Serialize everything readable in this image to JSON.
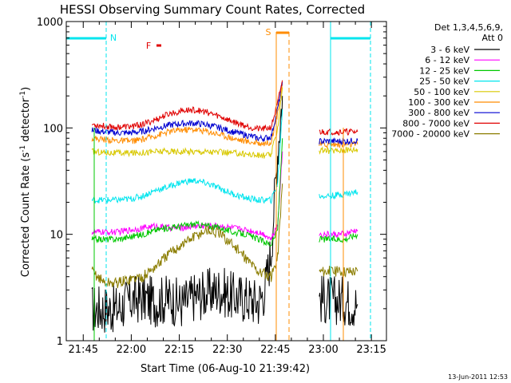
{
  "chart_data": {
    "type": "line",
    "title": "HESSI Observing Summary Count Rates, Corrected",
    "xlabel": "Start Time (06-Aug-10 21:39:42)",
    "ylabel": "Corrected Count Rate (s^-1 detector^-1)",
    "ylabel_main": "Corrected Count Rate (s",
    "ylabel_sup1": "-1",
    "ylabel_mid": " detector",
    "ylabel_sup2": "-1",
    "ylabel_end": ")",
    "x_unit": "minutes since 21:39:42",
    "xlim": [
      0,
      100
    ],
    "ylim": [
      1,
      1000
    ],
    "y_scale": "log",
    "x_ticks": [
      {
        "label": "21:45",
        "x": 5.3
      },
      {
        "label": "22:00",
        "x": 20.3
      },
      {
        "label": "22:15",
        "x": 35.3
      },
      {
        "label": "22:30",
        "x": 50.3
      },
      {
        "label": "22:45",
        "x": 65.3
      },
      {
        "label": "23:00",
        "x": 80.3
      },
      {
        "label": "23:15",
        "x": 95.3
      }
    ],
    "y_ticks": [
      {
        "label": "1",
        "y": 1
      },
      {
        "label": "10",
        "y": 10
      },
      {
        "label": "100",
        "y": 100
      },
      {
        "label": "1000",
        "y": 1000
      }
    ],
    "legend_header": [
      "Det 1,3,4,5,6,9,",
      "Att 0"
    ],
    "legend_position": "right",
    "footer_date": "13-Jun-2011 12:53",
    "markers": [
      {
        "label": "N",
        "color": "#00e5ee"
      },
      {
        "label": "F",
        "color": "#e00000"
      },
      {
        "label": "S",
        "color": "#ff8c00"
      }
    ],
    "series": [
      {
        "name": "3 - 6 keV",
        "color": "#000000",
        "x": [
          8,
          12,
          16,
          20,
          24,
          28,
          32,
          36,
          40,
          44,
          48,
          52,
          56,
          60,
          62,
          64,
          66,
          67.5,
          79,
          83,
          87,
          91
        ],
        "y": [
          2,
          2,
          2,
          2.4,
          2.5,
          2.3,
          2.5,
          2.2,
          2.6,
          2.8,
          3,
          2.6,
          2.5,
          2.3,
          3,
          7,
          60,
          200,
          2.5,
          2.4,
          2.4,
          2.2
        ]
      },
      {
        "name": "6 - 12 keV",
        "color": "#ff00ff",
        "x": [
          8,
          12,
          16,
          20,
          24,
          28,
          32,
          36,
          40,
          44,
          48,
          52,
          56,
          60,
          62,
          64,
          66,
          67.5,
          79,
          83,
          87,
          91
        ],
        "y": [
          10.5,
          10.5,
          10.5,
          11,
          11.5,
          12,
          11.5,
          11.5,
          12,
          12,
          12,
          11.5,
          11,
          10.5,
          10,
          9,
          12,
          60,
          10,
          10,
          10,
          11
        ]
      },
      {
        "name": "12 - 25 keV",
        "color": "#00c800",
        "x": [
          8,
          12,
          16,
          20,
          24,
          28,
          32,
          36,
          40,
          44,
          48,
          52,
          56,
          60,
          62,
          64,
          66,
          67.5,
          79,
          83,
          87,
          91
        ],
        "y": [
          9,
          9,
          9,
          9.5,
          10,
          11,
          11.5,
          12,
          12.5,
          12,
          11.5,
          10.5,
          10,
          9,
          8.5,
          8,
          11,
          80,
          9,
          9,
          9,
          10
        ]
      },
      {
        "name": "25 - 50 keV",
        "color": "#00e5ee",
        "x": [
          8,
          12,
          16,
          20,
          24,
          28,
          32,
          36,
          40,
          44,
          48,
          52,
          56,
          60,
          62,
          64,
          66,
          67.5,
          79,
          83,
          87,
          91
        ],
        "y": [
          21,
          21,
          21,
          21.5,
          23,
          26,
          28,
          31,
          32,
          30,
          27,
          24,
          22,
          21,
          21,
          21,
          30,
          150,
          23,
          23,
          24,
          25
        ]
      },
      {
        "name": "50 - 100 keV",
        "color": "#d8c800",
        "x": [
          8,
          12,
          16,
          20,
          24,
          28,
          32,
          36,
          40,
          44,
          48,
          52,
          56,
          60,
          62,
          64,
          66,
          67.5,
          79,
          83,
          87,
          91
        ],
        "y": [
          60,
          59,
          58,
          58,
          59,
          60,
          60,
          60,
          60,
          60,
          59,
          58,
          57,
          55,
          55,
          56,
          100,
          240,
          61,
          61,
          62,
          63
        ]
      },
      {
        "name": "100 - 300 keV",
        "color": "#ff8c00",
        "x": [
          8,
          12,
          16,
          20,
          24,
          28,
          32,
          36,
          40,
          44,
          48,
          52,
          56,
          60,
          62,
          64,
          66,
          67.5,
          79,
          83,
          87,
          91
        ],
        "y": [
          80,
          78,
          76,
          75,
          78,
          85,
          92,
          96,
          97,
          93,
          87,
          80,
          75,
          72,
          72,
          74,
          140,
          260,
          70,
          70,
          70,
          70
        ]
      },
      {
        "name": "300 - 800 keV",
        "color": "#0000d0",
        "x": [
          8,
          12,
          16,
          20,
          24,
          28,
          32,
          36,
          40,
          44,
          48,
          52,
          56,
          60,
          62,
          64,
          66,
          67.5,
          79,
          83,
          87,
          91
        ],
        "y": [
          95,
          92,
          90,
          90,
          93,
          100,
          106,
          110,
          111,
          107,
          100,
          92,
          86,
          80,
          80,
          83,
          150,
          270,
          75,
          75,
          75,
          76
        ]
      },
      {
        "name": "800 - 7000 keV",
        "color": "#e00000",
        "x": [
          8,
          12,
          16,
          20,
          24,
          28,
          32,
          36,
          40,
          44,
          48,
          52,
          56,
          60,
          62,
          64,
          66,
          67.5,
          79,
          83,
          87,
          91
        ],
        "y": [
          108,
          104,
          102,
          103,
          108,
          120,
          135,
          145,
          148,
          140,
          128,
          115,
          105,
          98,
          98,
          102,
          170,
          280,
          92,
          92,
          92,
          92
        ]
      },
      {
        "name": "7000 - 20000 keV",
        "color": "#8b7d00",
        "x": [
          8,
          12,
          16,
          20,
          24,
          28,
          32,
          36,
          40,
          44,
          48,
          52,
          56,
          60,
          62,
          64,
          66,
          67.5,
          79,
          83,
          87,
          91
        ],
        "y": [
          4.5,
          3.5,
          3.5,
          3.8,
          4,
          5,
          6.5,
          8,
          9.5,
          11,
          10,
          8,
          6,
          4.5,
          4.2,
          4,
          6,
          30,
          4.5,
          4.5,
          4.5,
          4.5
        ]
      }
    ]
  }
}
